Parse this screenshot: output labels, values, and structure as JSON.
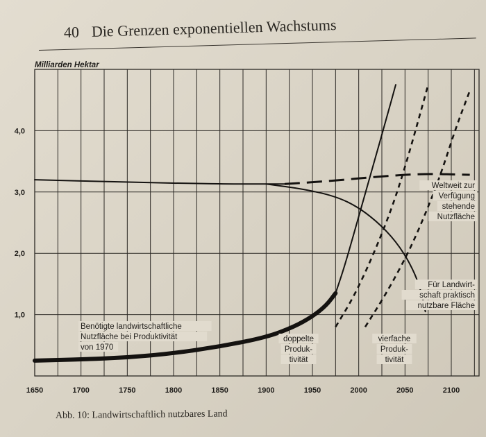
{
  "page": {
    "number": "40",
    "title": "Die Grenzen exponentiellen Wachstums"
  },
  "caption": "Abb. 10: Landwirtschaftlich nutzbares Land",
  "chart_data": {
    "type": "line",
    "ylabel": "Milliarden Hektar",
    "xlabel": "",
    "xlim": [
      1650,
      2130
    ],
    "ylim": [
      0,
      5
    ],
    "x_ticks": [
      "1650",
      "1700",
      "1750",
      "1800",
      "1850",
      "1900",
      "1950",
      "2000",
      "2050",
      "2100"
    ],
    "y_ticks": [
      "1,0",
      "2,0",
      "3,0",
      "4,0"
    ],
    "grid": true,
    "series": [
      {
        "name": "Weltweit zur Verfügung stehende Nutzfläche",
        "style": "solid",
        "points": [
          [
            1650,
            3.2
          ],
          [
            1750,
            3.16
          ],
          [
            1850,
            3.13
          ],
          [
            1900,
            3.13
          ],
          [
            1920,
            3.13
          ]
        ]
      },
      {
        "name": "Weltweit zur Verfügung stehende Nutzfläche",
        "style": "long-dash",
        "points": [
          [
            1920,
            3.13
          ],
          [
            1970,
            3.18
          ],
          [
            2020,
            3.25
          ],
          [
            2070,
            3.3
          ],
          [
            2120,
            3.28
          ]
        ]
      },
      {
        "name": "Für Landwirtschaft praktisch nutzbare Fläche",
        "style": "solid",
        "points": [
          [
            1900,
            3.13
          ],
          [
            1940,
            3.05
          ],
          [
            1975,
            2.93
          ],
          [
            2000,
            2.75
          ],
          [
            2025,
            2.45
          ],
          [
            2045,
            2.1
          ],
          [
            2060,
            1.7
          ],
          [
            2068,
            1.35
          ],
          [
            2072,
            1.05
          ]
        ]
      },
      {
        "name": "Benötigte landwirtschaftliche Nutzfläche bei Produktivität von 1970",
        "style": "solid-thick",
        "points": [
          [
            1650,
            0.25
          ],
          [
            1700,
            0.27
          ],
          [
            1750,
            0.3
          ],
          [
            1800,
            0.37
          ],
          [
            1850,
            0.48
          ],
          [
            1900,
            0.63
          ],
          [
            1930,
            0.8
          ],
          [
            1950,
            0.97
          ],
          [
            1965,
            1.15
          ],
          [
            1975,
            1.35
          ]
        ]
      },
      {
        "name": "Benötigte landwirtschaftliche Nutzfläche bei Produktivität von 1970",
        "style": "solid",
        "points": [
          [
            1975,
            1.35
          ],
          [
            1985,
            1.8
          ],
          [
            2000,
            2.6
          ],
          [
            2015,
            3.4
          ],
          [
            2030,
            4.2
          ],
          [
            2040,
            4.75
          ]
        ]
      },
      {
        "name": "doppelte Produktivität",
        "style": "short-dash",
        "points": [
          [
            1975,
            0.8
          ],
          [
            1995,
            1.3
          ],
          [
            2015,
            1.95
          ],
          [
            2035,
            2.7
          ],
          [
            2050,
            3.4
          ],
          [
            2065,
            4.2
          ],
          [
            2075,
            4.75
          ]
        ]
      },
      {
        "name": "vierfache Produktivität",
        "style": "short-dash",
        "points": [
          [
            2007,
            0.8
          ],
          [
            2030,
            1.35
          ],
          [
            2055,
            2.05
          ],
          [
            2075,
            2.75
          ],
          [
            2090,
            3.35
          ],
          [
            2105,
            4.05
          ],
          [
            2120,
            4.65
          ]
        ]
      }
    ],
    "annotations": {
      "available": [
        "Weltweit zur",
        "Verfügung",
        "stehende",
        "Nutzfläche"
      ],
      "usable": [
        "Für Landwirt-",
        "schaft praktisch",
        "nutzbare Fläche"
      ],
      "needed": [
        "Benötigte landwirtschaftliche",
        "Nutzfläche bei Produktivität",
        "von 1970"
      ],
      "double": [
        "doppelte",
        "Produk-",
        "tivität"
      ],
      "quadruple": [
        "vierfache",
        "Produk-",
        "tivität"
      ]
    }
  }
}
